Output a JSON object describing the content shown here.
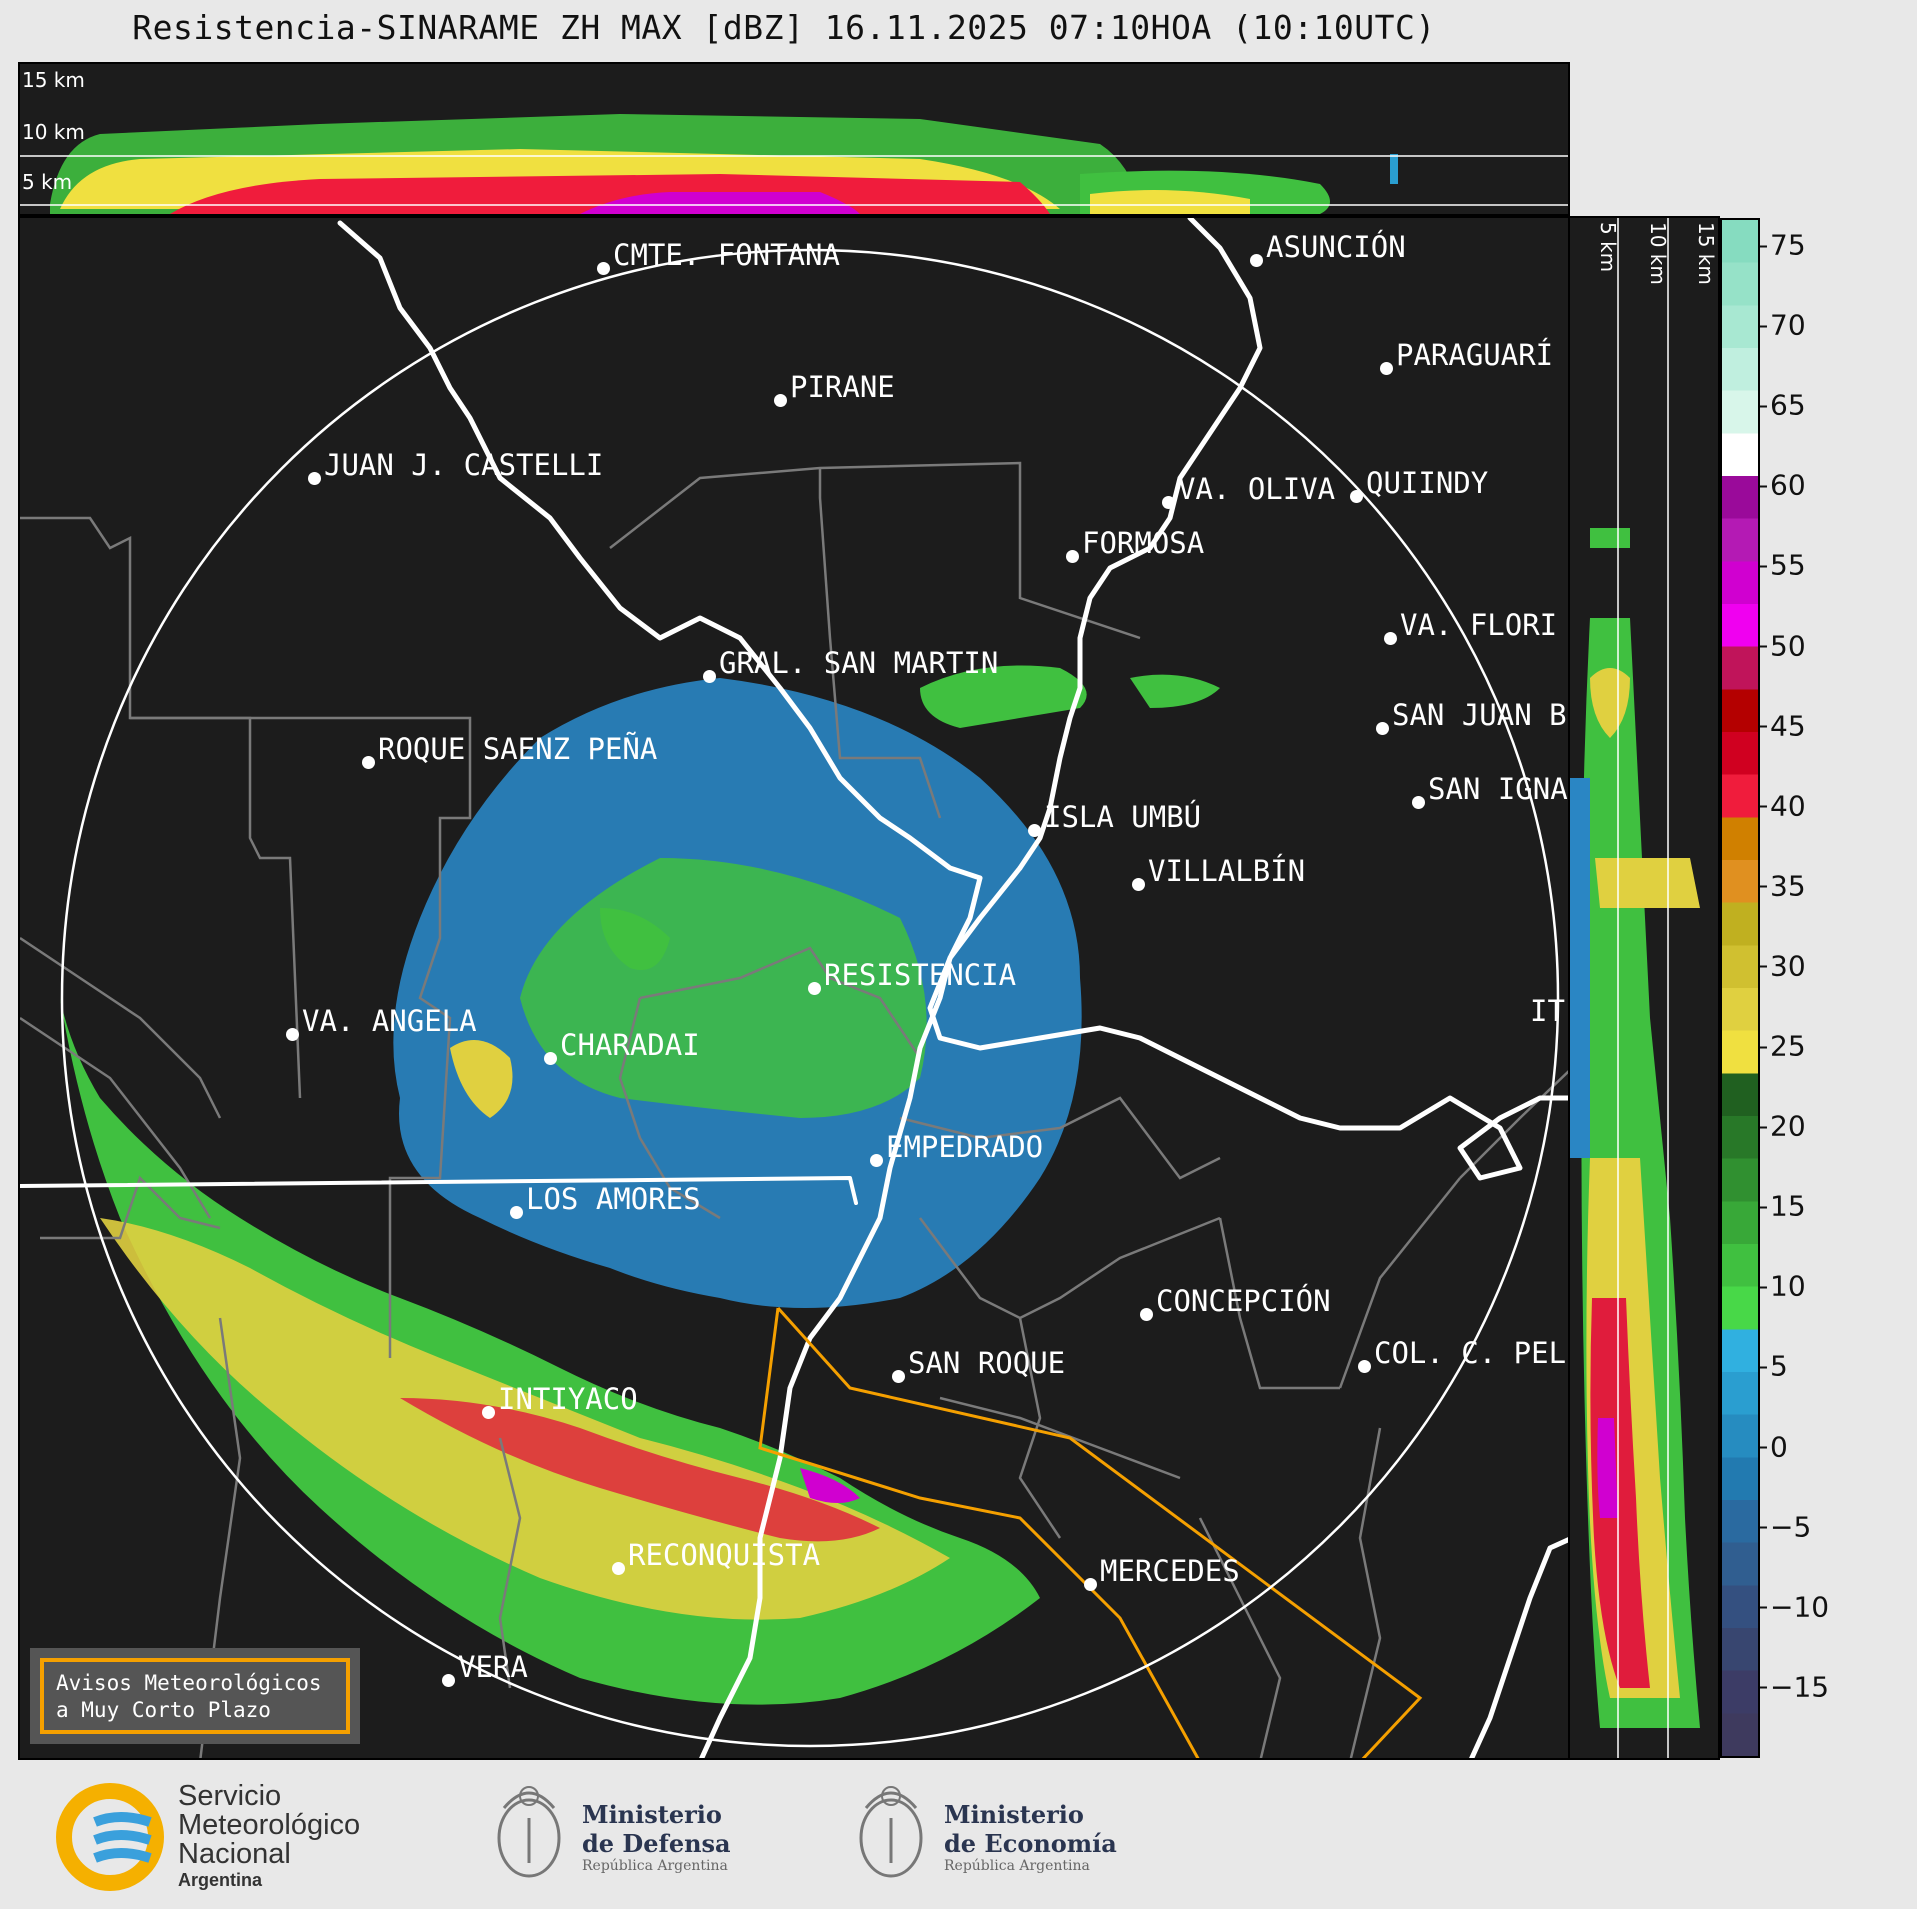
{
  "title": "Resistencia-SINARAME ZH MAX [dBZ] 16.11.2025 07:10HOA (10:10UTC)",
  "top_panel": {
    "height_labels": [
      "15 km",
      "10 km",
      "5 km"
    ]
  },
  "side_panel": {
    "height_labels": [
      "5 km",
      "10 km",
      "15 km"
    ]
  },
  "colorbar": {
    "ticks": [
      "75",
      "70",
      "65",
      "60",
      "55",
      "50",
      "45",
      "40",
      "35",
      "30",
      "25",
      "20",
      "15",
      "10",
      "5",
      "0",
      "−5",
      "−10",
      "−15"
    ],
    "colors": [
      "#86dcc0",
      "#96e2c8",
      "#a8e8d2",
      "#c0efdf",
      "#d8f6ea",
      "#ffffff",
      "#9a0a9a",
      "#b41ab4",
      "#d000d0",
      "#f000f0",
      "#c0145a",
      "#b40000",
      "#d00020",
      "#f01c3c",
      "#d08000",
      "#e09020",
      "#c0b020",
      "#d0c030",
      "#e0d040",
      "#f0e040",
      "#206020",
      "#287828",
      "#309030",
      "#38a838",
      "#40c040",
      "#48d848",
      "#30b0e0",
      "#2a9ed0",
      "#268cc0",
      "#227ab0",
      "#2a6aa0",
      "#305e90",
      "#345080",
      "#384670",
      "#3c3c66",
      "#3e3a5e"
    ]
  },
  "cities": [
    {
      "name": "CMTE. FONTANA"
    },
    {
      "name": "ASUNCIÓN"
    },
    {
      "name": "PARAGUARÍ"
    },
    {
      "name": "PIRANE"
    },
    {
      "name": "JUAN J. CASTELLI"
    },
    {
      "name": "VA. OLIVA"
    },
    {
      "name": "QUIINDY"
    },
    {
      "name": "FORMOSA"
    },
    {
      "name": "VA. FLORI"
    },
    {
      "name": "GRAL. SAN MARTIN"
    },
    {
      "name": "SAN JUAN B"
    },
    {
      "name": "ROQUE SAENZ PEÑA"
    },
    {
      "name": "SAN IGNA"
    },
    {
      "name": "ISLA UMBÚ"
    },
    {
      "name": "VILLALBÍN"
    },
    {
      "name": "RESISTENCIA"
    },
    {
      "name": "VA. ANGELA"
    },
    {
      "name": "CHARADAI"
    },
    {
      "name": "IT"
    },
    {
      "name": "EMPEDRADO"
    },
    {
      "name": "LOS AMORES"
    },
    {
      "name": "CONCEPCIÓN"
    },
    {
      "name": "SAN ROQUE"
    },
    {
      "name": "COL. C. PEL"
    },
    {
      "name": "INTIYACO"
    },
    {
      "name": "RECONQUISTA"
    },
    {
      "name": "MERCEDES"
    },
    {
      "name": "VERA"
    }
  ],
  "warning_box": {
    "line1": "Avisos Meteorológicos",
    "line2": "a Muy Corto Plazo"
  },
  "footer": {
    "smn": {
      "line1": "Servicio",
      "line2": "Meteorológico",
      "line3": "Nacional",
      "line4": "Argentina"
    },
    "defensa": {
      "line1": "Ministerio",
      "line2": "de Defensa",
      "line3": "República Argentina"
    },
    "economia": {
      "line1": "Ministerio",
      "line2": "de Economía",
      "line3": "República Argentina"
    }
  },
  "map_colors": {
    "background": "#1c1c1c",
    "rivers": "#ffffff",
    "borders": "#7a7a7a",
    "warning_polygon": "#f5a000",
    "range_ring": "#ffffff"
  }
}
